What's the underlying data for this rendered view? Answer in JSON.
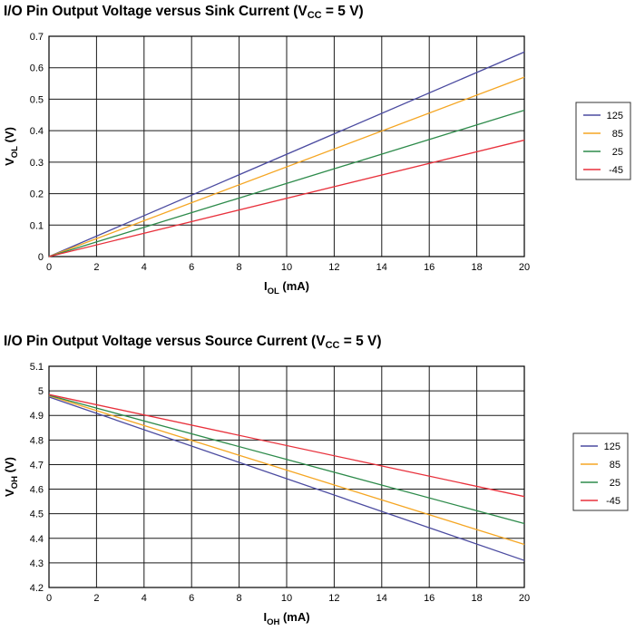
{
  "chart_data": [
    {
      "type": "line",
      "title_main": "I/O Pin Output Voltage versus Sink Current (V",
      "title_sub": "CC",
      "title_end": " = 5 V)",
      "xlabel_main": "I",
      "xlabel_sub": "OL",
      "xlabel_end": " (mA)",
      "ylabel_main": "V",
      "ylabel_sub": "OL",
      "ylabel_end": " (V)",
      "xlim": [
        0,
        20
      ],
      "ylim": [
        0,
        0.7
      ],
      "x_ticks": [
        0,
        2,
        4,
        6,
        8,
        10,
        12,
        14,
        16,
        18,
        20
      ],
      "y_ticks": [
        0,
        0.1,
        0.2,
        0.3,
        0.4,
        0.5,
        0.6,
        0.7
      ],
      "grid": true,
      "legend_position": "right",
      "series": [
        {
          "name": "125",
          "color": "#4b4ba0",
          "x": [
            0,
            20
          ],
          "y": [
            0,
            0.65
          ]
        },
        {
          "name": "85",
          "color": "#f5a623",
          "x": [
            0,
            20
          ],
          "y": [
            0,
            0.57
          ]
        },
        {
          "name": "25",
          "color": "#2e8b4b",
          "x": [
            0,
            20
          ],
          "y": [
            0,
            0.465
          ]
        },
        {
          "name": "-45",
          "color": "#e8313c",
          "x": [
            0,
            20
          ],
          "y": [
            0,
            0.37
          ]
        }
      ]
    },
    {
      "type": "line",
      "title_main": "I/O Pin Output Voltage versus Source Current (V",
      "title_sub": "CC",
      "title_end": " = 5 V)",
      "xlabel_main": "I",
      "xlabel_sub": "OH",
      "xlabel_end": " (mA)",
      "ylabel_main": "V",
      "ylabel_sub": "OH",
      "ylabel_end": " (V)",
      "xlim": [
        0,
        20
      ],
      "ylim": [
        4.2,
        5.1
      ],
      "x_ticks": [
        0,
        2,
        4,
        6,
        8,
        10,
        12,
        14,
        16,
        18,
        20
      ],
      "y_ticks": [
        4.2,
        4.3,
        4.4,
        4.5,
        4.6,
        4.7,
        4.8,
        4.9,
        5,
        5.1
      ],
      "grid": true,
      "legend_position": "right",
      "series": [
        {
          "name": "125",
          "color": "#4b4ba0",
          "x": [
            0,
            20
          ],
          "y": [
            4.975,
            4.31
          ]
        },
        {
          "name": "85",
          "color": "#f5a623",
          "x": [
            0,
            20
          ],
          "y": [
            4.98,
            4.375
          ]
        },
        {
          "name": "25",
          "color": "#2e8b4b",
          "x": [
            0,
            20
          ],
          "y": [
            4.982,
            4.46
          ]
        },
        {
          "name": "-45",
          "color": "#e8313c",
          "x": [
            0,
            20
          ],
          "y": [
            4.985,
            4.57
          ]
        }
      ]
    }
  ]
}
